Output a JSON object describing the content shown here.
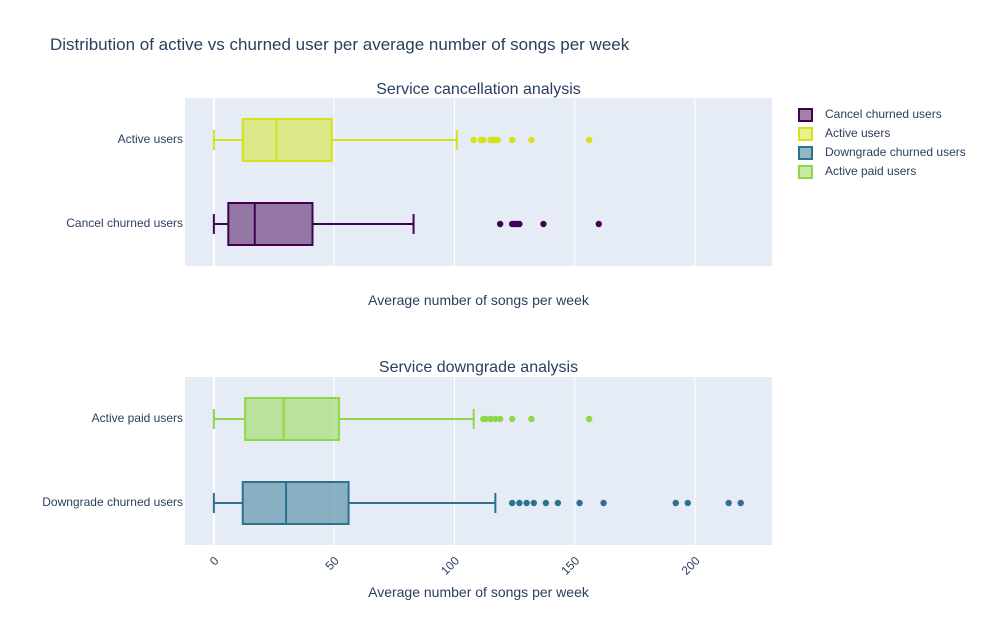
{
  "chart_data": {
    "type": "box",
    "title": "Distribution of active vs churned user per average number of songs per week",
    "x_ticks": [
      "0",
      "50",
      "100",
      "150",
      "200"
    ],
    "xlim": [
      -12,
      232
    ],
    "legend": {
      "placement": "top-right",
      "entries": [
        {
          "name": "Cancel churned users",
          "color": "#440154"
        },
        {
          "name": "Active users",
          "color": "#d4e21a"
        },
        {
          "name": "Downgrade churned users",
          "color": "#2c728e"
        },
        {
          "name": "Active paid users",
          "color": "#8fd744"
        }
      ]
    },
    "panels": [
      {
        "title": "Service cancellation analysis",
        "xlabel": "Average number of songs per week",
        "show_x_ticks": false,
        "series": [
          {
            "name": "Active users",
            "color": "#d4e21a",
            "min": 0,
            "q1": 12,
            "median": 26,
            "q3": 49,
            "max": 101,
            "outliers": [
              108,
              111,
              112,
              115,
              116,
              117,
              118,
              124,
              132,
              156
            ]
          },
          {
            "name": "Cancel churned users",
            "color": "#440154",
            "min": 0,
            "q1": 6,
            "median": 17,
            "q3": 41,
            "max": 83,
            "outliers": [
              119,
              124,
              125,
              126,
              127,
              137,
              160
            ]
          }
        ]
      },
      {
        "title": "Service downgrade analysis",
        "xlabel": "Average number of songs per week",
        "show_x_ticks": true,
        "series": [
          {
            "name": "Active paid users",
            "color": "#8fd744",
            "min": 0,
            "q1": 13,
            "median": 29,
            "q3": 52,
            "max": 108,
            "outliers": [
              112,
              113,
              115,
              117,
              119,
              124,
              132,
              156
            ]
          },
          {
            "name": "Downgrade churned users",
            "color": "#2c728e",
            "min": 0,
            "q1": 12,
            "median": 30,
            "q3": 56,
            "max": 117,
            "outliers": [
              124,
              127,
              130,
              133,
              138,
              143,
              152,
              162,
              192,
              197,
              214,
              219
            ]
          }
        ]
      }
    ]
  }
}
